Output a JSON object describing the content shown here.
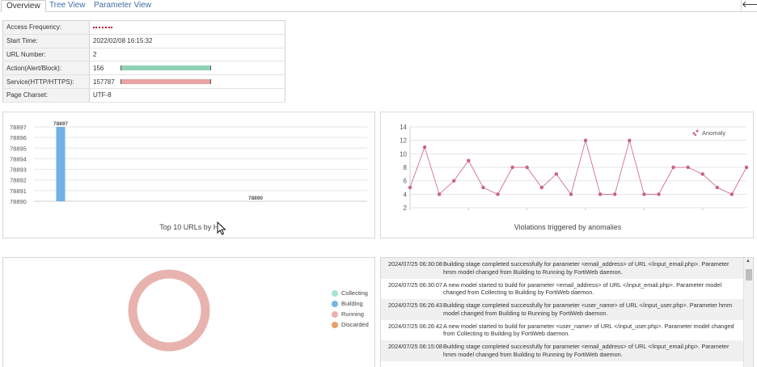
{
  "tabs": [
    {
      "label": "Overview",
      "active": true
    },
    {
      "label": "Tree View",
      "active": false
    },
    {
      "label": "Parameter View",
      "active": false
    }
  ],
  "back_button": "🡐",
  "info_table": {
    "rows": [
      {
        "label": "Access Frequency:",
        "value": ""
      },
      {
        "label": "Start Time:",
        "value": "2022/02/08 16:15:32"
      },
      {
        "label": "URL Number:",
        "value": "2"
      },
      {
        "label": "Action(Alert/Block):",
        "value": "156",
        "bar_color": "#8fd1b5",
        "bar_fraction": 1.0
      },
      {
        "label": "Service(HTTP/HTTPS):",
        "value": "157787",
        "bar_color": "#e8a4a4",
        "bar_fraction": 1.0
      },
      {
        "label": "Page Charset:",
        "value": "UTF-8"
      }
    ],
    "access_frequency_color": "#c8102e"
  },
  "top_urls_chart": {
    "caption": "Top 10 URLs by Hit"
  },
  "anomaly_chart": {
    "caption": "Violations triggered by anomalies"
  },
  "donut_chart": {
    "legend": [
      {
        "label": "Collecting",
        "color": "#a8e3d6"
      },
      {
        "label": "Building",
        "color": "#74b5e4"
      },
      {
        "label": "Running",
        "color": "#e8b3ae"
      },
      {
        "label": "Discarded",
        "color": "#e89e6a"
      }
    ]
  },
  "chart_data": [
    {
      "type": "bar",
      "categories": [
        "",
        ""
      ],
      "values": [
        78897,
        78890
      ],
      "data_labels": [
        "78897",
        "78890"
      ],
      "title": "Top 10 URLs by Hit",
      "yticks": [
        "78897",
        "78896",
        "78895",
        "78894",
        "78893",
        "78892",
        "78891",
        "78890"
      ],
      "ylim": [
        78890,
        78897
      ],
      "bar_color": "#6fb2e6",
      "grid": true
    },
    {
      "type": "line",
      "title": "Violations triggered by anomalies",
      "series": [
        {
          "name": "Anomaly",
          "values": [
            5,
            11,
            4,
            6,
            9,
            5,
            4,
            8,
            8,
            5,
            7,
            4,
            12,
            4,
            4,
            12,
            4,
            4,
            8,
            8,
            7,
            5,
            4,
            8
          ],
          "color": "#c9627f"
        }
      ],
      "yticks": [
        "2",
        "4",
        "6",
        "8",
        "10",
        "12",
        "14"
      ],
      "ylim": [
        2,
        14
      ],
      "grid": true,
      "legend_position": "top-right"
    },
    {
      "type": "pie",
      "title": "",
      "slices": [
        {
          "name": "Collecting",
          "value": 0
        },
        {
          "name": "Building",
          "value": 0
        },
        {
          "name": "Running",
          "value": 1
        },
        {
          "name": "Discarded",
          "value": 0
        }
      ]
    }
  ],
  "log": {
    "entries": [
      {
        "time": "2024/07/25 06:30:08",
        "message": "Building stage completed successfully for parameter <email_address> of URL </input_email.php>. Parameter hmm model changed from Building to Running by FortiWeb daemon."
      },
      {
        "time": "2024/07/25 06:30:07",
        "message": "A new model started to build for parameter <email_address> of URL </input_email.php>. Parameter model changed from Collecting to Building by FortiWeb daemon."
      },
      {
        "time": "2024/07/25 06:26:43",
        "message": "Building stage completed successfully for parameter <user_name> of URL </input_user.php>. Parameter hmm model changed from Building to Running by FortiWeb daemon."
      },
      {
        "time": "2024/07/25 06:26:42",
        "message": "A new model started to build for parameter <user_name> of URL </input_user.php>. Parameter model changed from Collecting to Building by FortiWeb daemon."
      },
      {
        "time": "2024/07/25 06:15:08",
        "message": "Building stage completed successfully for parameter <email_address> of URL </input_email.php>. Parameter hmm model changed from Building to Running by FortiWeb daemon."
      }
    ]
  }
}
